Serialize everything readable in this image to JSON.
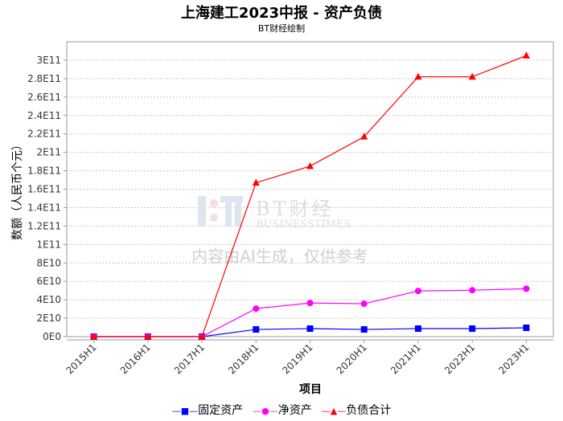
{
  "chart_data": {
    "type": "line",
    "title": "上海建工2023中报 - 资产负债",
    "subtitle": "BT财经绘制",
    "xlabel": "项目",
    "ylabel": "数额（人民币个元）",
    "categories": [
      "2015H1",
      "2016H1",
      "2017H1",
      "2018H1",
      "2019H1",
      "2020H1",
      "2021H1",
      "2022H1",
      "2023H1"
    ],
    "ylim": [
      0,
      320000000000
    ],
    "yticks": [
      0,
      20000000000.0,
      40000000000.0,
      60000000000.0,
      80000000000.0,
      100000000000.0,
      120000000000.0,
      140000000000.0,
      160000000000.0,
      180000000000.0,
      200000000000.0,
      220000000000.0,
      240000000000.0,
      260000000000.0,
      280000000000.0,
      300000000000.0
    ],
    "ytick_labels": [
      "0E0",
      "2E10",
      "4E10",
      "6E10",
      "8E10",
      "1E11",
      "1.2E11",
      "1.4E11",
      "1.6E11",
      "1.8E11",
      "2E11",
      "2.2E11",
      "2.4E11",
      "2.6E11",
      "2.8E11",
      "3E11"
    ],
    "grid": true,
    "legend_position": "bottom",
    "series": [
      {
        "name": "固定资产",
        "color": "#0000ff",
        "marker": "square",
        "values": [
          0,
          0,
          0,
          7800000000.0,
          8700000000.0,
          7800000000.0,
          8700000000.0,
          8700000000.0,
          9600000000.0
        ]
      },
      {
        "name": "净资产",
        "color": "#ff00ff",
        "marker": "circle",
        "values": [
          0,
          0,
          0,
          30400000000.0,
          36500000000.0,
          35700000000.0,
          49600000000.0,
          50400000000.0,
          52000000000.0
        ]
      },
      {
        "name": "负债合计",
        "color": "#ff0000",
        "marker": "triangle",
        "values": [
          0,
          0,
          0,
          167000000000.0,
          185000000000.0,
          217000000000.0,
          282000000000.0,
          282000000000.0,
          305000000000.0
        ]
      }
    ]
  },
  "watermark": {
    "brand": "BT财经",
    "brand_en": "BUSINESSTIMES",
    "notice": "内容由AI生成，仅供参考"
  }
}
